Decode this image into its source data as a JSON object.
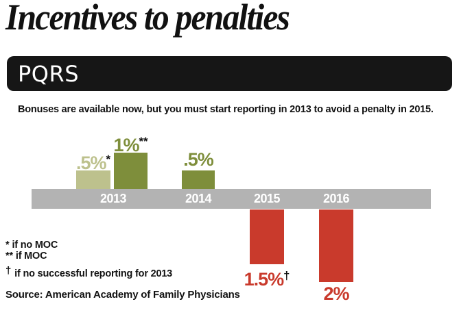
{
  "title": "Incentives to penalties",
  "banner": {
    "label": "PQRS"
  },
  "subtitle": "Bonuses are available now, but you must start reporting in 2013 to avoid a penalty in 2015.",
  "colors": {
    "light_green": "#bdc18d",
    "dark_green": "#7e8e3b",
    "red": "#c93a2c",
    "gray_bar": "#b3b3b3",
    "banner_black": "#161616",
    "text_black": "#1a1a1a",
    "white": "#ffffff"
  },
  "chart_data": {
    "type": "bar",
    "title": "PQRS",
    "subtitle": "Bonuses are available now, but you must start reporting in 2013 to avoid a penalty in 2015.",
    "categories": [
      "2013",
      "2014",
      "2015",
      "2016"
    ],
    "unit": "percent",
    "ylim": [
      -2.5,
      1.5
    ],
    "grid": false,
    "legend_position": "none",
    "baseline": "gray timeline band with white year labels",
    "bars": [
      {
        "year": "2013",
        "value": 0.5,
        "label": ".5%",
        "marker": "*",
        "color": "light_green"
      },
      {
        "year": "2013",
        "value": 1.0,
        "label": "1%",
        "marker": "**",
        "color": "dark_green"
      },
      {
        "year": "2014",
        "value": 0.5,
        "label": ".5%",
        "marker": "",
        "color": "dark_green"
      },
      {
        "year": "2015",
        "value": -1.5,
        "label": "1.5%",
        "marker": "†",
        "color": "red"
      },
      {
        "year": "2016",
        "value": -2.0,
        "label": "2%",
        "marker": "",
        "color": "red"
      }
    ]
  },
  "footnotes": [
    {
      "marker": "*",
      "text": "if no MOC"
    },
    {
      "marker": "**",
      "text": "if MOC"
    },
    {
      "marker": "†",
      "text": "if no successful reporting for 2013"
    }
  ],
  "source": "Source: American Academy of Family Physicians"
}
